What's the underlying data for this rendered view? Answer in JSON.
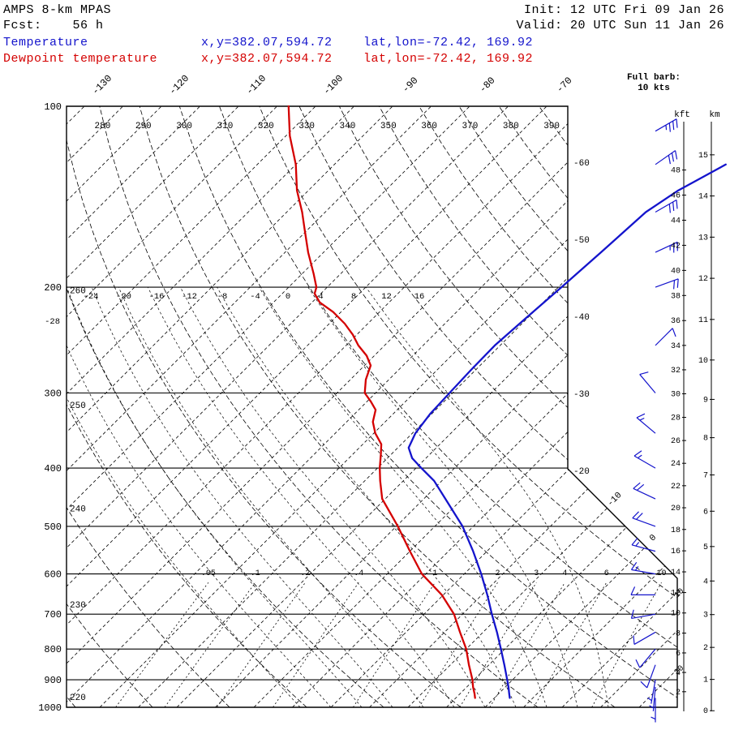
{
  "header": {
    "model": "AMPS 8-km MPAS",
    "fcst_label": "Fcst:    56 h",
    "init_label": "Init: 12 UTC Fri 09 Jan 26",
    "valid_label": "Valid: 20 UTC Sun 11 Jan 26",
    "temp_legend": {
      "label": "Temperature",
      "xy": "x,y=382.07,594.72",
      "latlon": "lat,lon=-72.42, 169.92"
    },
    "dewp_legend": {
      "label": "Dewpoint temperature",
      "xy": "x,y=382.07,594.72",
      "latlon": "lat,lon=-72.42, 169.92"
    },
    "barb_legend_line1": "Full barb:",
    "barb_legend_line2": "10 kts"
  },
  "colors": {
    "temperature": "#1414cc",
    "dewpoint": "#d40000",
    "wind_barbs": "#1414cc",
    "grid": "#000000",
    "background": "#ffffff"
  },
  "axes": {
    "pressure_label_values": [
      100,
      200,
      300,
      400,
      500,
      600,
      700,
      800,
      900,
      1000
    ],
    "kft_header": "kft",
    "km_header": "km",
    "kft_tick_values": [
      48,
      46,
      44,
      42,
      40,
      38,
      36,
      34,
      32,
      30,
      28,
      26,
      24,
      22,
      20,
      18,
      16,
      14,
      12,
      10,
      8,
      6,
      4,
      2
    ],
    "km_tick_values": [
      15,
      14,
      13,
      12,
      11,
      10,
      9,
      8,
      7,
      6,
      5,
      4,
      3,
      2,
      1,
      0
    ],
    "isotherm_top_labels": [
      -130,
      -120,
      -110,
      -100,
      -90,
      -80,
      -70
    ],
    "isotherm_right_labels": [
      -60,
      -50,
      -40,
      -30,
      -20
    ],
    "isotherm_diag_labels": [
      -10,
      0
    ],
    "isotherm_lowright_labels": [
      10,
      20
    ],
    "theta_top_labels": [
      280,
      290,
      300,
      310,
      320,
      330,
      340,
      350,
      360,
      370,
      380,
      390
    ],
    "theta_left_labels": [
      260,
      250,
      240,
      230,
      220
    ],
    "moist_row_labels": [
      -24,
      -20,
      -16,
      -12,
      -8,
      -4,
      0,
      4,
      8,
      12,
      16
    ],
    "moist_left_label": "-28",
    "mixing_ratio_labels": [
      ".05",
      ".1",
      ".2",
      ".4",
      "1",
      "2",
      "3",
      "4",
      "6",
      "10"
    ],
    "mixing_ratio_values": [
      0.05,
      0.1,
      0.2,
      0.4,
      1,
      2,
      3,
      4,
      6,
      10
    ]
  },
  "chart_data": {
    "type": "skewt_log_p",
    "pressure_range_hpa": [
      100,
      1000
    ],
    "temperature_profile": [
      [
        965,
        2.0
      ],
      [
        950,
        1.4
      ],
      [
        925,
        0.4
      ],
      [
        900,
        -0.7
      ],
      [
        850,
        -3.0
      ],
      [
        800,
        -5.5
      ],
      [
        750,
        -8.2
      ],
      [
        700,
        -11.2
      ],
      [
        650,
        -14.3
      ],
      [
        600,
        -17.8
      ],
      [
        550,
        -21.8
      ],
      [
        500,
        -26.4
      ],
      [
        450,
        -32.2
      ],
      [
        420,
        -36.0
      ],
      [
        400,
        -39.3
      ],
      [
        385,
        -41.8
      ],
      [
        370,
        -43.6
      ],
      [
        350,
        -44.6
      ],
      [
        325,
        -45.2
      ],
      [
        300,
        -45.4
      ],
      [
        275,
        -45.6
      ],
      [
        250,
        -45.7
      ],
      [
        225,
        -45.2
      ],
      [
        200,
        -44.6
      ],
      [
        175,
        -44.0
      ],
      [
        150,
        -43.4
      ],
      [
        138,
        -42.0
      ],
      [
        125,
        -39.2
      ]
    ],
    "dewpoint_profile": [
      [
        965,
        -2.5
      ],
      [
        950,
        -3.1
      ],
      [
        925,
        -4.2
      ],
      [
        900,
        -5.2
      ],
      [
        850,
        -7.6
      ],
      [
        800,
        -10.0
      ],
      [
        750,
        -13.0
      ],
      [
        700,
        -16.1
      ],
      [
        650,
        -20.2
      ],
      [
        600,
        -25.5
      ],
      [
        550,
        -30.0
      ],
      [
        500,
        -34.8
      ],
      [
        450,
        -40.4
      ],
      [
        420,
        -43.0
      ],
      [
        400,
        -44.7
      ],
      [
        380,
        -46.3
      ],
      [
        365,
        -47.6
      ],
      [
        350,
        -49.8
      ],
      [
        335,
        -51.6
      ],
      [
        320,
        -52.8
      ],
      [
        310,
        -54.5
      ],
      [
        300,
        -56.4
      ],
      [
        285,
        -58.0
      ],
      [
        270,
        -59.2
      ],
      [
        260,
        -61.0
      ],
      [
        250,
        -63.4
      ],
      [
        240,
        -65.5
      ],
      [
        230,
        -68.0
      ],
      [
        220,
        -71.0
      ],
      [
        212,
        -74.0
      ],
      [
        205,
        -75.8
      ],
      [
        200,
        -76.4
      ],
      [
        190,
        -78.5
      ],
      [
        175,
        -82.0
      ],
      [
        160,
        -85.5
      ],
      [
        150,
        -88.0
      ],
      [
        138,
        -91.5
      ],
      [
        125,
        -95.0
      ],
      [
        112,
        -99.5
      ],
      [
        100,
        -103.5
      ]
    ],
    "winds": [
      [
        110,
        60,
        35
      ],
      [
        125,
        55,
        30
      ],
      [
        150,
        60,
        30
      ],
      [
        175,
        65,
        25
      ],
      [
        200,
        70,
        20
      ],
      [
        250,
        45,
        10
      ],
      [
        300,
        320,
        10
      ],
      [
        350,
        310,
        15
      ],
      [
        400,
        300,
        15
      ],
      [
        450,
        295,
        20
      ],
      [
        500,
        290,
        20
      ],
      [
        550,
        285,
        15
      ],
      [
        600,
        280,
        15
      ],
      [
        650,
        270,
        10
      ],
      [
        700,
        260,
        10
      ],
      [
        750,
        240,
        10
      ],
      [
        800,
        220,
        10
      ],
      [
        850,
        200,
        10
      ],
      [
        900,
        190,
        5
      ],
      [
        925,
        185,
        5
      ],
      [
        965,
        180,
        5
      ]
    ]
  }
}
